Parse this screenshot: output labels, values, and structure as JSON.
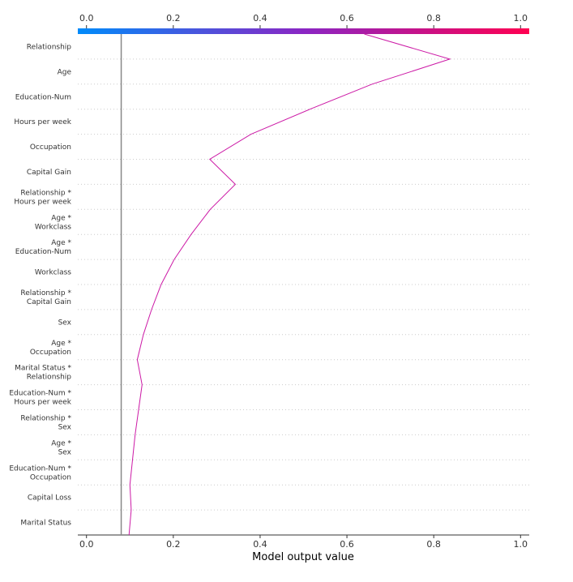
{
  "chart_data": {
    "type": "line",
    "title": "",
    "xlabel": "Model output value",
    "ylabel": "",
    "xlim": [
      -0.02,
      1.02
    ],
    "x_ticks": [
      "0.0",
      "0.2",
      "0.4",
      "0.6",
      "0.8",
      "1.0"
    ],
    "x_tick_values": [
      0.0,
      0.2,
      0.4,
      0.6,
      0.8,
      1.0
    ],
    "grid": "horizontal dotted",
    "base_value": 0.08,
    "line_color": "#cc1aa6",
    "base_line_color": "#888888",
    "colorbar": {
      "from": "#008bfa",
      "mid": "#8a26c4",
      "to": "#ff0051"
    },
    "features": [
      [
        "Relationship"
      ],
      [
        "Age"
      ],
      [
        "Education-Num"
      ],
      [
        "Hours per week"
      ],
      [
        "Occupation"
      ],
      [
        "Capital Gain"
      ],
      [
        "Relationship *",
        "Hours per week"
      ],
      [
        "Age *",
        "Workclass"
      ],
      [
        "Age *",
        "Education-Num"
      ],
      [
        "Workclass"
      ],
      [
        "Relationship *",
        "Capital Gain"
      ],
      [
        "Sex"
      ],
      [
        "Age *",
        "Occupation"
      ],
      [
        "Marital Status *",
        "Relationship"
      ],
      [
        "Education-Num *",
        "Hours per week"
      ],
      [
        "Relationship *",
        "Sex"
      ],
      [
        "Age *",
        "Sex"
      ],
      [
        "Education-Num *",
        "Occupation"
      ],
      [
        "Capital Loss"
      ],
      [
        "Marital Status"
      ]
    ],
    "path_x": [
      0.64,
      0.837,
      0.658,
      0.515,
      0.379,
      0.284,
      0.343,
      0.285,
      0.241,
      0.202,
      0.172,
      0.15,
      0.131,
      0.117,
      0.128,
      0.12,
      0.112,
      0.106,
      0.1,
      0.103,
      0.098
    ]
  }
}
